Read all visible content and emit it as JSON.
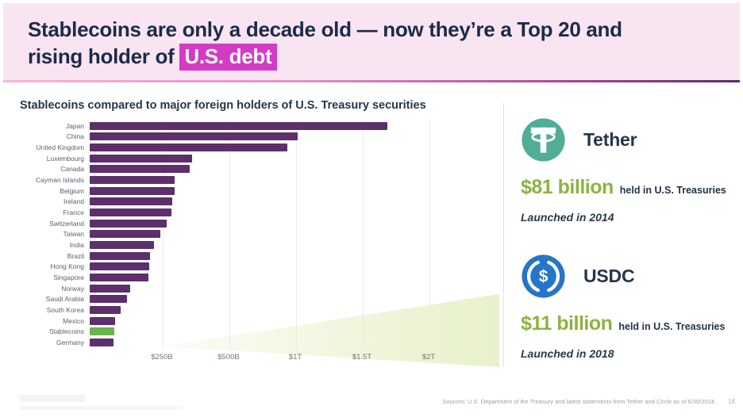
{
  "header": {
    "title_line1": "Stablecoins are only a decade old — now they’re a Top 20 and",
    "title_line2_prefix": "rising holder of ",
    "title_highlight": "U.S. debt",
    "highlight_color": "#d43bc4",
    "background_color": "#f9e4f1"
  },
  "chart": {
    "heading": "Stablecoins compared to major foreign holders of U.S. Treasury securities"
  },
  "chart_data": {
    "type": "bar",
    "orientation": "horizontal",
    "title": "Stablecoins compared to major foreign holders of U.S. Treasury securities",
    "unit": "USD billions held in U.S. Treasury securities",
    "categories": [
      "Japan",
      "China",
      "United Kingdom",
      "Luxembourg",
      "Canada",
      "Cayman Islands",
      "Belgium",
      "Ireland",
      "France",
      "Switzerland",
      "Taiwan",
      "India",
      "Brazil",
      "Hong Kong",
      "Singapore",
      "Norway",
      "Saudi Arabia",
      "South Korea",
      "Mexico",
      "Stablecoins",
      "Germany"
    ],
    "values": [
      1117,
      780,
      740,
      384,
      374,
      319,
      318,
      308,
      307,
      288,
      265,
      241,
      227,
      223,
      220,
      152,
      140,
      116,
      95,
      92,
      88
    ],
    "highlight_category": "Stablecoins",
    "bar_color": "#5d2f6b",
    "highlight_color": "#68b54c",
    "x_tick_labels": [
      "$250B",
      "$500B",
      "$1T",
      "$1.5T",
      "$2T"
    ],
    "x_ticks_equally_spaced": true,
    "grid": true,
    "legend": false,
    "xlim": [
      0,
      1520
    ]
  },
  "panel": {
    "tether": {
      "name": "Tether",
      "amount": "$81 billion",
      "amount_suffix": "held in U.S. Treasuries",
      "launched": "Launched in 2014",
      "icon_color": "#4fae95"
    },
    "usdc": {
      "name": "USDC",
      "amount": "$11 billion",
      "amount_suffix": "held in U.S. Treasuries",
      "launched": "Launched in 2018",
      "icon_color": "#2775ca"
    }
  },
  "footer": {
    "sources": "Sources: U.S. Department of the Treasury and latest statements from Tether and Circle as of 6/30/2024.",
    "page_number": "18"
  }
}
